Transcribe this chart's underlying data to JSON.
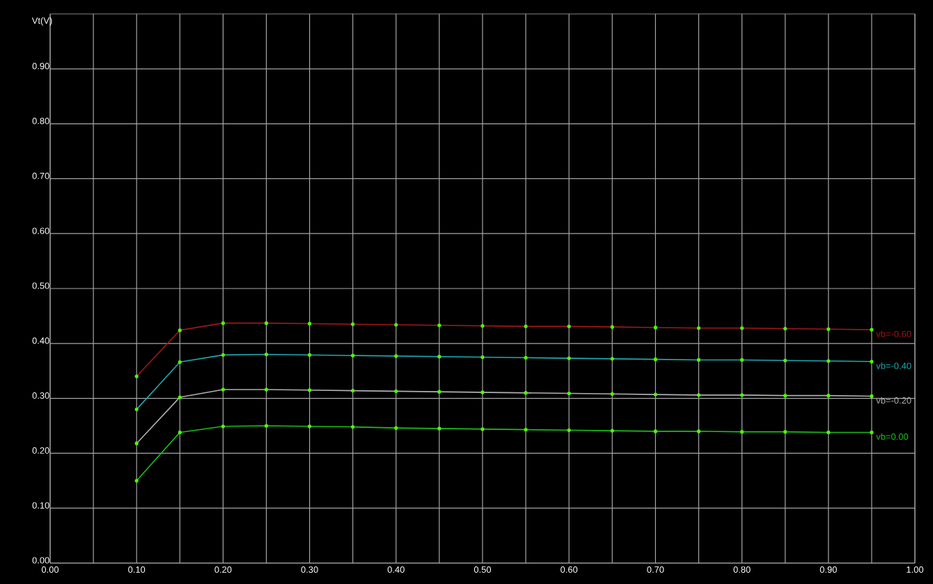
{
  "chart_data": {
    "type": "line",
    "ylabel": "Vt(V)",
    "x": [
      0.1,
      0.15,
      0.2,
      0.25,
      0.3,
      0.35,
      0.4,
      0.45,
      0.5,
      0.55,
      0.6,
      0.65,
      0.7,
      0.75,
      0.8,
      0.85,
      0.9,
      0.95
    ],
    "series": [
      {
        "name": "vb=-0.60",
        "color": "#a01818",
        "values": [
          0.34,
          0.424,
          0.437,
          0.437,
          0.436,
          0.435,
          0.434,
          0.433,
          0.432,
          0.431,
          0.431,
          0.43,
          0.429,
          0.428,
          0.428,
          0.427,
          0.426,
          0.425
        ]
      },
      {
        "name": "vb=-0.40",
        "color": "#20a8b0",
        "values": [
          0.28,
          0.366,
          0.379,
          0.38,
          0.379,
          0.378,
          0.377,
          0.376,
          0.375,
          0.374,
          0.373,
          0.372,
          0.371,
          0.37,
          0.37,
          0.369,
          0.368,
          0.367
        ]
      },
      {
        "name": "vb=-0.20",
        "color": "#b0b0b0",
        "values": [
          0.218,
          0.302,
          0.316,
          0.316,
          0.315,
          0.314,
          0.313,
          0.312,
          0.311,
          0.31,
          0.309,
          0.308,
          0.307,
          0.306,
          0.306,
          0.305,
          0.305,
          0.304
        ]
      },
      {
        "name": "vb=0.00",
        "color": "#18c018",
        "values": [
          0.15,
          0.238,
          0.249,
          0.25,
          0.249,
          0.248,
          0.246,
          0.245,
          0.244,
          0.243,
          0.242,
          0.241,
          0.24,
          0.24,
          0.239,
          0.239,
          0.238,
          0.238
        ]
      }
    ],
    "xlim": [
      0,
      1.0
    ],
    "ylim": [
      0,
      1.0
    ],
    "xticks": [
      {
        "value": 0,
        "label": "0.00"
      },
      {
        "value": 0.05,
        "label": null
      },
      {
        "value": 0.1,
        "label": "0.10"
      },
      {
        "value": 0.15,
        "label": null
      },
      {
        "value": 0.2,
        "label": "0.20"
      },
      {
        "value": 0.25,
        "label": null
      },
      {
        "value": 0.3,
        "label": "0.30"
      },
      {
        "value": 0.35,
        "label": null
      },
      {
        "value": 0.4,
        "label": "0.40"
      },
      {
        "value": 0.45,
        "label": null
      },
      {
        "value": 0.5,
        "label": "0.50"
      },
      {
        "value": 0.55,
        "label": null
      },
      {
        "value": 0.6,
        "label": "0.60"
      },
      {
        "value": 0.65,
        "label": null
      },
      {
        "value": 0.7,
        "label": "0.70"
      },
      {
        "value": 0.75,
        "label": null
      },
      {
        "value": 0.8,
        "label": "0.80"
      },
      {
        "value": 0.85,
        "label": null
      },
      {
        "value": 0.9,
        "label": "0.90"
      },
      {
        "value": 0.95,
        "label": null
      },
      {
        "value": 1,
        "label": "1.00"
      }
    ],
    "yticks": [
      {
        "value": 0,
        "label": "0.00"
      },
      {
        "value": 0.1,
        "label": "0.10"
      },
      {
        "value": 0.2,
        "label": "0.20"
      },
      {
        "value": 0.3,
        "label": "0.30"
      },
      {
        "value": 0.4,
        "label": "0.40"
      },
      {
        "value": 0.5,
        "label": "0.50"
      },
      {
        "value": 0.6,
        "label": "0.60"
      },
      {
        "value": 0.7,
        "label": "0.70"
      },
      {
        "value": 0.8,
        "label": "0.80"
      },
      {
        "value": 0.9,
        "label": "0.90"
      }
    ],
    "grid": true,
    "legend": false,
    "marker": "circle",
    "line_style": "solid"
  }
}
